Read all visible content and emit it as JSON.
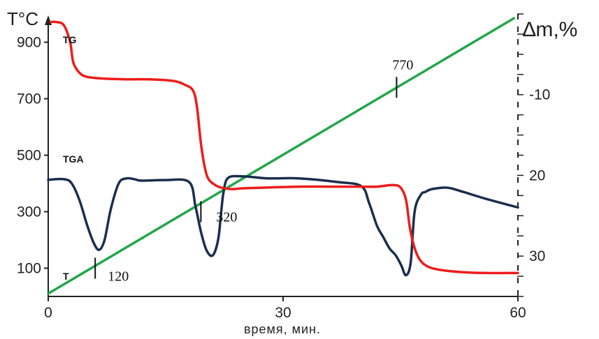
{
  "chart_data": {
    "type": "line",
    "title": "",
    "xlabel": "время, мин.",
    "ylabel_left": "T°C",
    "ylabel_right": "∆m,%",
    "xlim": [
      0,
      60
    ],
    "ylim_left": [
      0,
      1000
    ],
    "ylim_right": [
      0,
      35
    ],
    "x_ticks": [
      "0",
      "30",
      "60"
    ],
    "y_left_ticks": [
      "100",
      "300",
      "500",
      "700",
      "900"
    ],
    "y_right_ticks": [
      "10",
      "20",
      "30"
    ],
    "grid": false,
    "series": [
      {
        "name": "TG",
        "color": "#ee1c1c",
        "axis": "right",
        "x": [
          0.3,
          1,
          2,
          2.8,
          3.2,
          4,
          5,
          7,
          10,
          13,
          16,
          17.5,
          18.5,
          19,
          19.5,
          20,
          20.5,
          21.5,
          22.5,
          23.5,
          25,
          28,
          32,
          36,
          40,
          42,
          44,
          45,
          45.7,
          46.2,
          46.8,
          47.5,
          48.5,
          50,
          53,
          56,
          60
        ],
        "y": [
          1.0,
          1.0,
          1.4,
          3.5,
          6.0,
          7.3,
          7.8,
          8.0,
          8.1,
          8.1,
          8.3,
          8.8,
          9.5,
          11.5,
          16.0,
          19.0,
          20.5,
          21.3,
          21.6,
          21.7,
          21.6,
          21.5,
          21.4,
          21.4,
          21.4,
          21.4,
          21.2,
          21.5,
          23.0,
          26.5,
          29.0,
          30.5,
          31.3,
          31.7,
          32.0,
          32.1,
          32.1
        ]
      },
      {
        "name": "TGA",
        "color": "#1b2f4e",
        "axis": "left",
        "x": [
          0,
          2,
          3,
          4,
          5,
          5.8,
          6.5,
          7.2,
          8,
          9,
          10,
          11,
          12,
          15,
          18,
          18.8,
          19.5,
          20.2,
          21,
          21.7,
          22.1,
          22.4,
          23,
          25,
          28,
          32,
          37,
          40,
          41,
          42,
          42.8,
          43.6,
          44.4,
          45.1,
          45.7,
          46.3,
          46.8,
          47.6,
          48.2,
          49,
          51,
          53,
          56,
          60
        ],
        "y": [
          413,
          415,
          400,
          340,
          250,
          190,
          165,
          200,
          310,
          400,
          418,
          415,
          410,
          412,
          405,
          320,
          230,
          165,
          145,
          200,
          300,
          370,
          420,
          425,
          418,
          418,
          405,
          390,
          330,
          250,
          210,
          170,
          145,
          110,
          75,
          120,
          300,
          360,
          370,
          380,
          385,
          370,
          345,
          315
        ]
      },
      {
        "name": "T",
        "color": "#22a74a",
        "axis": "left",
        "x": [
          0,
          59.5
        ],
        "y": [
          10,
          985
        ]
      }
    ],
    "annotations": [
      {
        "text": "120",
        "x": 6,
        "y": 100
      },
      {
        "text": "320",
        "x": 19.5,
        "y": 300
      },
      {
        "text": "770",
        "x": 44.5,
        "y": 740
      }
    ]
  }
}
